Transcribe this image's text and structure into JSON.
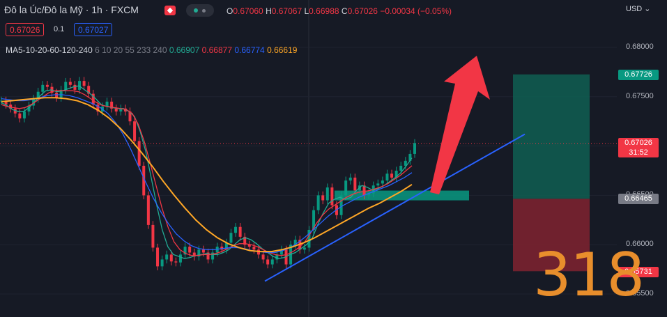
{
  "header": {
    "symbol_title": "Đô la Úc/Đô la Mỹ · 1h · FXCM",
    "ohlc": {
      "o_label": "O",
      "o": "0.67060",
      "h_label": "H",
      "h": "0.67067",
      "l_label": "L",
      "l": "0.66988",
      "c_label": "C",
      "c": "0.67026",
      "change": "−0.00034 (−0.05%)"
    },
    "sell_price": "0.67026",
    "spread": "0.1",
    "buy_price": "0.67027",
    "ma_label": "MA5-10-20-60-120-240",
    "ma_params": "6 10 20 55 233 240",
    "ma_values": [
      "0.66907",
      "0.66877",
      "0.66774",
      "0.66619"
    ],
    "ma_colors": [
      "#22ab94",
      "#f23645",
      "#2962ff",
      "#ffa726"
    ]
  },
  "currency": "USD",
  "watermark": "318",
  "chart_data": {
    "type": "line",
    "ylim": [
      0.6545,
      0.6825
    ],
    "y_ticks": [
      "0.68000",
      "0.67500",
      "0.67000",
      "0.66500",
      "0.66000",
      "0.65500"
    ],
    "y_tick_values": [
      0.68,
      0.675,
      0.67,
      0.665,
      0.66,
      0.655
    ],
    "x_range": [
      0,
      126
    ],
    "price": [
      0.6746,
      0.6742,
      0.6738,
      0.6733,
      0.6728,
      0.6735,
      0.6741,
      0.6748,
      0.6755,
      0.6762,
      0.676,
      0.6754,
      0.6749,
      0.6757,
      0.6765,
      0.6762,
      0.6757,
      0.6766,
      0.6761,
      0.6753,
      0.6742,
      0.6735,
      0.674,
      0.6745,
      0.6738,
      0.6735,
      0.6738,
      0.6735,
      0.6725,
      0.6705,
      0.668,
      0.665,
      0.662,
      0.6597,
      0.6578,
      0.6585,
      0.659,
      0.6583,
      0.6582,
      0.659,
      0.6598,
      0.6592,
      0.6588,
      0.6595,
      0.6592,
      0.6585,
      0.6592,
      0.6598,
      0.6595,
      0.6602,
      0.6612,
      0.6618,
      0.6608,
      0.66,
      0.6598,
      0.6595,
      0.659,
      0.6585,
      0.658,
      0.6585,
      0.659,
      0.6595,
      0.658,
      0.66,
      0.6605,
      0.6595,
      0.6597,
      0.6615,
      0.6635,
      0.665,
      0.6645,
      0.6658,
      0.664,
      0.663,
      0.665,
      0.6665,
      0.6668,
      0.6655,
      0.666,
      0.665,
      0.6652,
      0.666,
      0.6662,
      0.6665,
      0.6672,
      0.6668,
      0.6675,
      0.668,
      0.6685,
      0.6692,
      0.6703
    ],
    "series": [
      {
        "name": "MA5",
        "color": "#22ab94",
        "values": [
          0.6744,
          0.6741,
          0.6737,
          0.6735,
          0.6735,
          0.6739,
          0.6745,
          0.6751,
          0.6756,
          0.6757,
          0.6755,
          0.6756,
          0.6758,
          0.676,
          0.6761,
          0.6757,
          0.6753,
          0.6748,
          0.6742,
          0.674,
          0.6739,
          0.6738,
          0.6738,
          0.6735,
          0.673,
          0.6715,
          0.6695,
          0.6668,
          0.664,
          0.6615,
          0.6598,
          0.659,
          0.6588,
          0.6586,
          0.6587,
          0.6589,
          0.659,
          0.6591,
          0.659,
          0.659,
          0.6592,
          0.6595,
          0.66,
          0.6605,
          0.6607,
          0.6605,
          0.6601,
          0.6596,
          0.6592,
          0.6588,
          0.6586,
          0.6587,
          0.659,
          0.6592,
          0.6596,
          0.66,
          0.6606,
          0.662,
          0.6632,
          0.6642,
          0.6646,
          0.6648,
          0.6646,
          0.6648,
          0.6655,
          0.666,
          0.6658,
          0.6655,
          0.6657,
          0.666,
          0.6664,
          0.6668,
          0.6673,
          0.668,
          0.6688
        ]
      },
      {
        "name": "MA10",
        "color": "#f23645",
        "values": [
          0.6742,
          0.674,
          0.6739,
          0.6738,
          0.6739,
          0.6742,
          0.6746,
          0.675,
          0.6754,
          0.6756,
          0.6756,
          0.6756,
          0.6756,
          0.6755,
          0.6752,
          0.6748,
          0.6744,
          0.6741,
          0.674,
          0.6739,
          0.6738,
          0.6737,
          0.6733,
          0.6722,
          0.6705,
          0.6683,
          0.666,
          0.6637,
          0.6618,
          0.6603,
          0.6595,
          0.6591,
          0.6589,
          0.6589,
          0.659,
          0.659,
          0.6591,
          0.6593,
          0.6596,
          0.6599,
          0.6601,
          0.6601,
          0.66,
          0.6598,
          0.6595,
          0.6592,
          0.659,
          0.6589,
          0.659,
          0.6593,
          0.6597,
          0.6603,
          0.6612,
          0.6622,
          0.663,
          0.6636,
          0.664,
          0.6644,
          0.6648,
          0.6651,
          0.6653,
          0.6654,
          0.6655,
          0.6657,
          0.6659,
          0.6662,
          0.6666,
          0.667,
          0.6675,
          0.668
        ]
      },
      {
        "name": "MA20",
        "color": "#2962ff",
        "values": [
          0.6748,
          0.6747,
          0.6746,
          0.6746,
          0.6747,
          0.6749,
          0.6751,
          0.6752,
          0.6752,
          0.6751,
          0.6749,
          0.6746,
          0.6743,
          0.6739,
          0.6733,
          0.6724,
          0.6712,
          0.6697,
          0.668,
          0.6663,
          0.6647,
          0.6633,
          0.6621,
          0.6611,
          0.6604,
          0.6599,
          0.6596,
          0.6595,
          0.6595,
          0.6596,
          0.6597,
          0.6597,
          0.6596,
          0.6594,
          0.6593,
          0.6592,
          0.6592,
          0.6594,
          0.6597,
          0.6602,
          0.6608,
          0.6615,
          0.6622,
          0.6629,
          0.6635,
          0.664,
          0.6644,
          0.6648,
          0.6651,
          0.6654,
          0.6657,
          0.666,
          0.6664,
          0.6668,
          0.6673
        ]
      },
      {
        "name": "MA55",
        "color": "#ffa726",
        "values": [
          0.6745,
          0.6746,
          0.6747,
          0.6748,
          0.6749,
          0.6749,
          0.6748,
          0.6746,
          0.6742,
          0.6736,
          0.6728,
          0.6718,
          0.6706,
          0.6693,
          0.6679,
          0.6664,
          0.665,
          0.6637,
          0.6625,
          0.6615,
          0.6607,
          0.6601,
          0.6597,
          0.6594,
          0.6593,
          0.6593,
          0.6595,
          0.6598,
          0.6602,
          0.6607,
          0.6613,
          0.6619,
          0.6625,
          0.6631,
          0.6637,
          0.6642,
          0.6648,
          0.6654,
          0.6661
        ]
      }
    ],
    "trendline": {
      "from": [
        0.6563
      ],
      "to": [
        0.6712
      ]
    },
    "support_zone": {
      "y_low": 0.6644,
      "y_high": 0.6652
    },
    "projection": {
      "entry": 0.66465,
      "target": 0.67726,
      "stop": 0.65731
    },
    "last_price": 0.67026
  },
  "axis_tags": {
    "target": {
      "text": "0.67726",
      "color": "#089981"
    },
    "last": {
      "text": "0.67026",
      "countdown": "31:52",
      "color": "#f23645"
    },
    "entry": {
      "text": "0.66465",
      "color": "#787b86"
    },
    "stop": {
      "text": "0.65731",
      "color": "#f23645"
    }
  }
}
